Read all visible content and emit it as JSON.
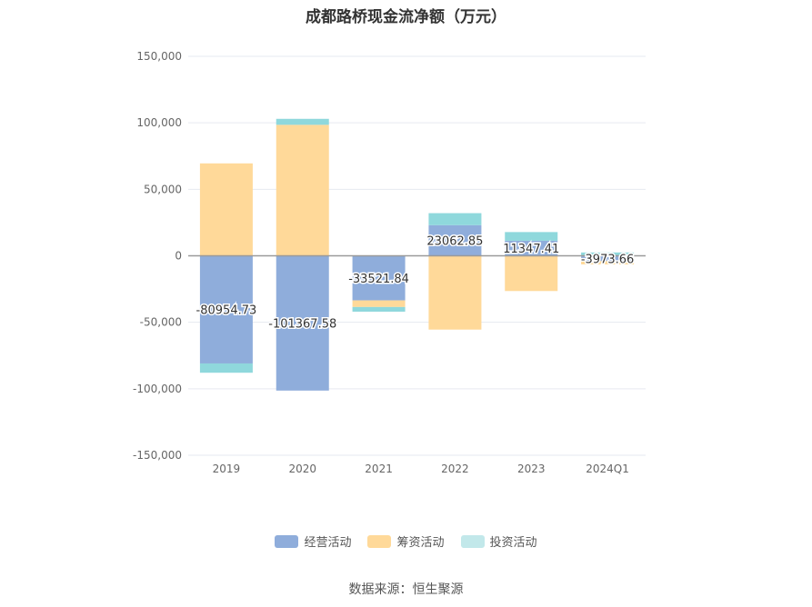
{
  "chart_data": {
    "type": "bar",
    "stacked": true,
    "title": "成都路桥现金流净额（万元）",
    "categories": [
      "2019",
      "2020",
      "2021",
      "2022",
      "2023",
      "2024Q1"
    ],
    "series": [
      {
        "name": "经营活动",
        "color": "#8faddb",
        "values": [
          -80954.73,
          -101367.58,
          -33521.84,
          23062.85,
          11347.41,
          -3973.66
        ]
      },
      {
        "name": "筹资活动",
        "color": "#ffd999",
        "values": [
          69500,
          98500,
          -5000,
          -55500,
          -26500,
          -2500
        ]
      },
      {
        "name": "投资活动",
        "color": "#8fd8dc",
        "values": [
          -7000,
          4500,
          -3500,
          9000,
          6500,
          2500
        ]
      }
    ],
    "data_labels": [
      "-80954.73",
      "-101367.58",
      "-33521.84",
      "23062.85",
      "11347.41",
      "-3973.66"
    ],
    "yticks": [
      "150,000",
      "100,000",
      "50,000",
      "0",
      "-50,000",
      "-100,000",
      "-150,000"
    ],
    "ylim": [
      -150000,
      150000
    ],
    "grid": true,
    "legend_position": "bottom"
  },
  "source": "数据来源：恒生聚源"
}
